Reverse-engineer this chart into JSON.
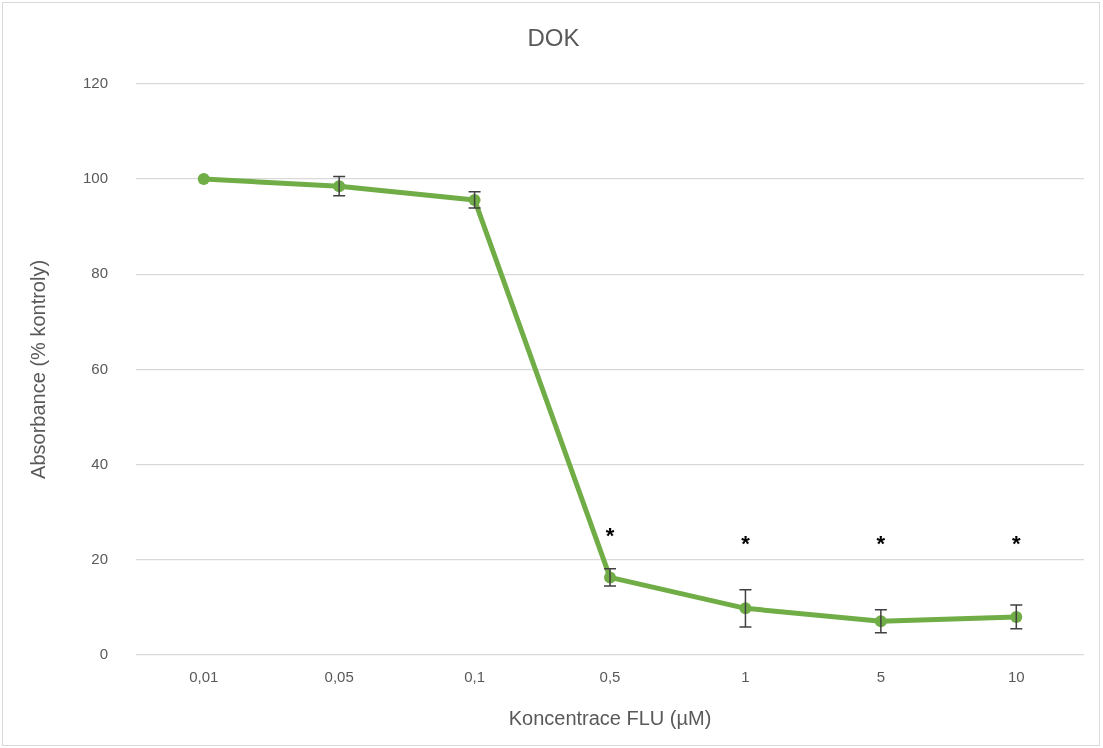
{
  "chart_data": {
    "type": "line",
    "title": "DOK",
    "xlabel": "Koncentrace FLU (µM)",
    "ylabel": "Absorbance (% kontroly)",
    "categories": [
      "0,01",
      "0,05",
      "0,1",
      "0,5",
      "1",
      "5",
      "10"
    ],
    "series": [
      {
        "color": "#70ad47",
        "values": [
          100,
          98.5,
          95.6,
          16.3,
          9.8,
          7.1,
          8.0
        ],
        "errors": [
          null,
          2,
          1.7,
          1.8,
          3.9,
          2.4,
          2.5
        ]
      }
    ],
    "ylim": [
      0,
      120
    ],
    "yticks": [
      0,
      20,
      40,
      60,
      80,
      100,
      120
    ],
    "grid": "y",
    "legend": false,
    "marker": "circle",
    "line_style": "solid",
    "annotations": [
      "*",
      "*",
      "*",
      "*"
    ]
  }
}
